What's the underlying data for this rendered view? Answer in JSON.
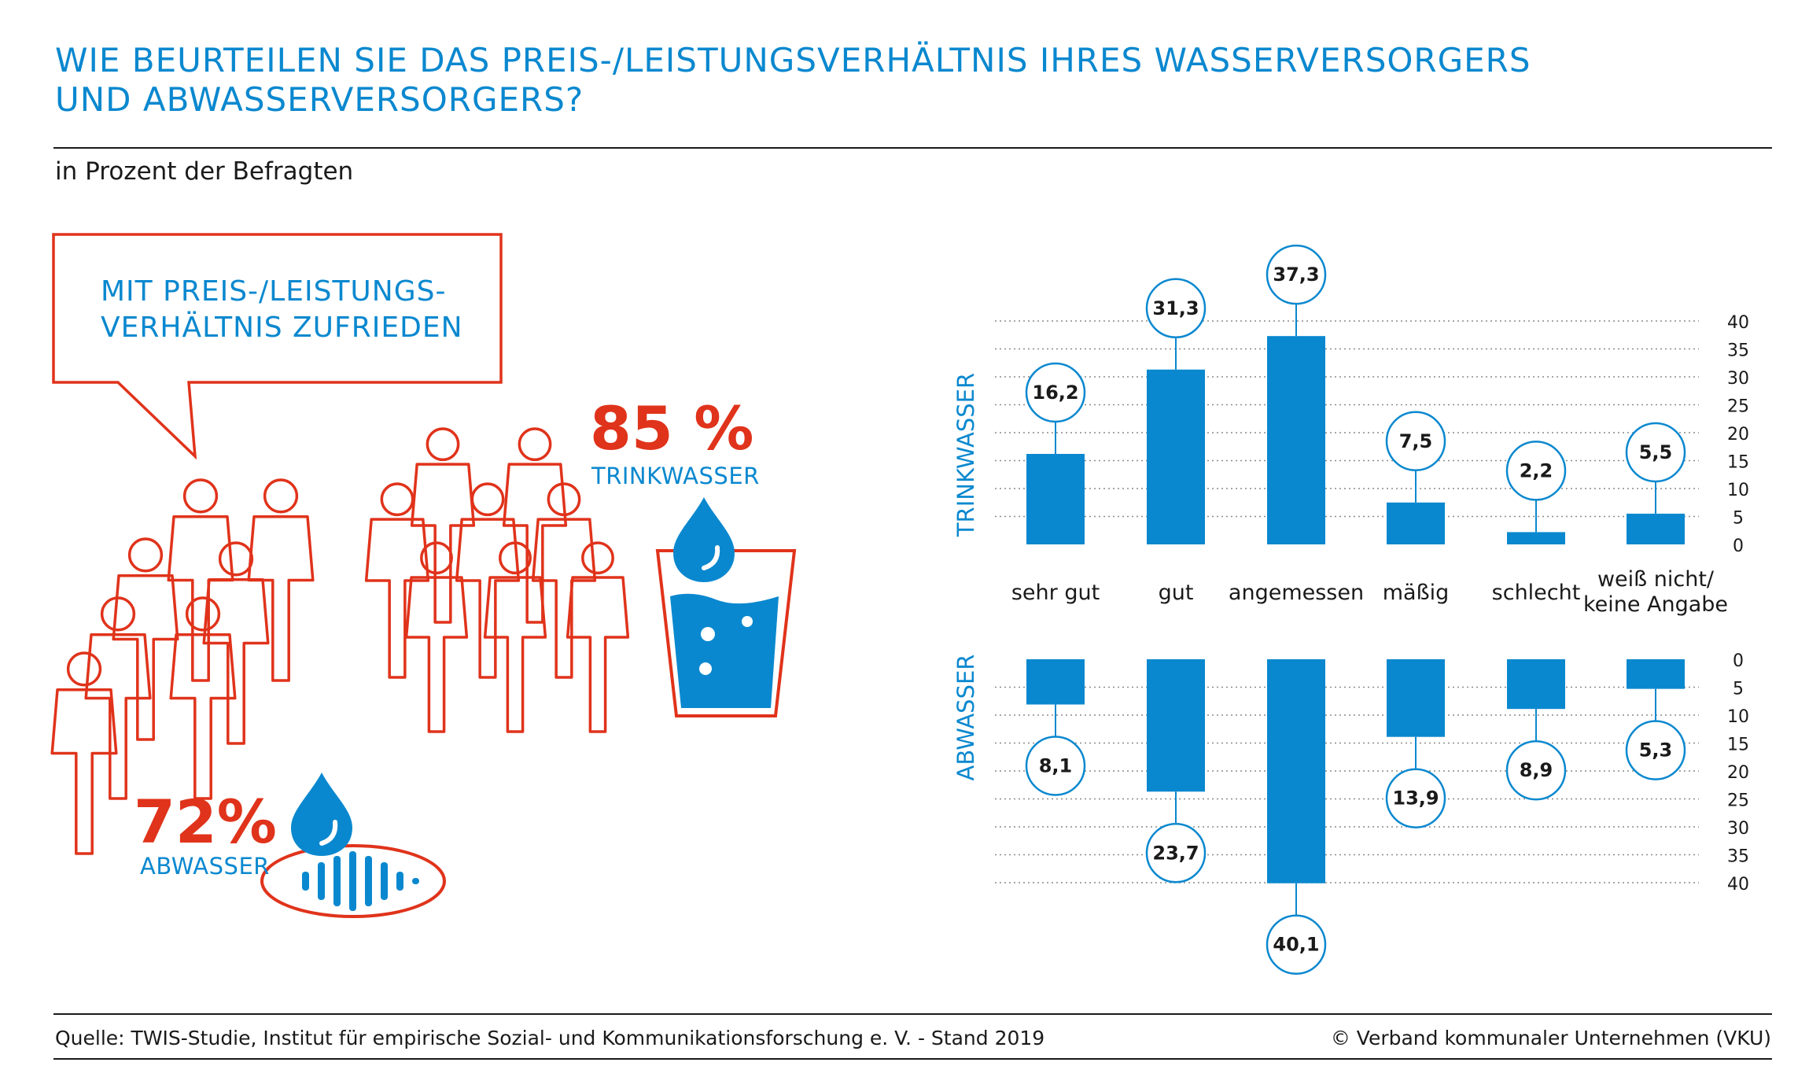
{
  "title_lines": [
    "WIE BEURTEILEN SIE DAS PREIS-/LEISTUNGSVERHÄLTNIS IHRES WASSERVERSORGERS",
    "UND ABWASSERVERSORGERS?"
  ],
  "subtitle": "in Prozent der Befragten",
  "callout": {
    "lines": [
      "MIT PREIS-/LEISTUNGS-",
      "VERHÄLTNIS ZUFRIEDEN"
    ],
    "trinkwasser_pct": "85 %",
    "trinkwasser_label": "TRINKWASSER",
    "abwasser_pct": "72%",
    "abwasser_label": "ABWASSER"
  },
  "icons": {
    "people": "people-group-icon",
    "glass": "water-glass-icon",
    "drop": "water-drop-icon",
    "drain": "drain-grate-icon"
  },
  "colors": {
    "blue": "#0a88cf",
    "red": "#e0331b",
    "text": "#1a1a1a"
  },
  "chart_data": {
    "type": "bar",
    "categories": [
      "sehr gut",
      "gut",
      "angemessen",
      "mäßig",
      "schlecht",
      "weiß nicht/\nkeine Angabe"
    ],
    "series": [
      {
        "name": "TRINKWASSER",
        "values": [
          16.2,
          31.3,
          37.3,
          7.5,
          2.2,
          5.5
        ],
        "labels": [
          "16,2",
          "31,3",
          "37,3",
          "7,5",
          "2,2",
          "5,5"
        ]
      },
      {
        "name": "ABWASSER",
        "values": [
          8.1,
          23.7,
          40.1,
          13.9,
          8.9,
          5.3
        ],
        "labels": [
          "8,1",
          "23,7",
          "40,1",
          "13,9",
          "8,9",
          "5,3"
        ]
      }
    ],
    "ylim": [
      0,
      40
    ],
    "yticks": [
      0,
      5,
      10,
      15,
      20,
      25,
      30,
      35,
      40
    ],
    "grid": true,
    "gridlines": "dotted"
  },
  "footer": {
    "source": "Quelle: TWIS-Studie, Institut für empirische Sozial- und Kommunikationsforschung e. V. - Stand 2019",
    "copyright": "© Verband kommunaler Unternehmen (VKU)"
  }
}
